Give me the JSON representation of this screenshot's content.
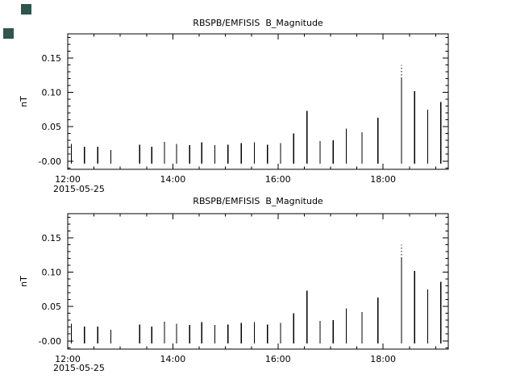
{
  "ui": {
    "background_color": "#ffffff",
    "plot_color": "#000000",
    "decoration_color": "#2e564c",
    "decorations": [
      "corner-square-top",
      "corner-square-left"
    ]
  },
  "chart_data": [
    {
      "type": "bar",
      "panel": "top",
      "title": "RBSPB/EMFISIS  B_Magnitude",
      "ylabel": "nT",
      "xlabel": "2015-05-25",
      "x_ticks": [
        "12:00",
        "14:00",
        "16:00",
        "18:00"
      ],
      "x_tick_hours": [
        12,
        14,
        16,
        18
      ],
      "xlim_hours": [
        12,
        19.24
      ],
      "ylim": [
        -0.012,
        0.185
      ],
      "y_ticks": [
        0.0,
        0.05,
        0.1,
        0.15
      ],
      "y_tick_labels": [
        "-0.00",
        "0.05",
        "0.10",
        "0.15"
      ],
      "grid": false,
      "legend": "none",
      "bar_color": "#000000",
      "points": [
        {
          "t": 12.07,
          "v": 0.025
        },
        {
          "t": 12.32,
          "v": 0.021
        },
        {
          "t": 12.57,
          "v": 0.021
        },
        {
          "t": 12.82,
          "v": 0.016
        },
        {
          "t": 13.37,
          "v": 0.024
        },
        {
          "t": 13.6,
          "v": 0.021
        },
        {
          "t": 13.84,
          "v": 0.028
        },
        {
          "t": 14.07,
          "v": 0.025
        },
        {
          "t": 14.32,
          "v": 0.023
        },
        {
          "t": 14.55,
          "v": 0.027
        },
        {
          "t": 14.8,
          "v": 0.023
        },
        {
          "t": 15.05,
          "v": 0.024
        },
        {
          "t": 15.3,
          "v": 0.026
        },
        {
          "t": 15.55,
          "v": 0.027
        },
        {
          "t": 15.8,
          "v": 0.024
        },
        {
          "t": 16.05,
          "v": 0.026
        },
        {
          "t": 16.3,
          "v": 0.04
        },
        {
          "t": 16.55,
          "v": 0.073
        },
        {
          "t": 16.8,
          "v": 0.029
        },
        {
          "t": 17.05,
          "v": 0.03
        },
        {
          "t": 17.3,
          "v": 0.047
        },
        {
          "t": 17.6,
          "v": 0.042
        },
        {
          "t": 17.9,
          "v": 0.063
        },
        {
          "t": 18.35,
          "v": 0.12,
          "v_dotted_top": 0.14
        },
        {
          "t": 18.6,
          "v": 0.102
        },
        {
          "t": 18.85,
          "v": 0.075
        },
        {
          "t": 19.1,
          "v": 0.086
        }
      ]
    },
    {
      "type": "bar",
      "panel": "bottom",
      "title": "RBSPB/EMFISIS  B_Magnitude",
      "ylabel": "nT",
      "xlabel": "2015-05-25",
      "x_ticks": [
        "12:00",
        "14:00",
        "16:00",
        "18:00"
      ],
      "x_tick_hours": [
        12,
        14,
        16,
        18
      ],
      "xlim_hours": [
        12,
        19.24
      ],
      "ylim": [
        -0.012,
        0.185
      ],
      "y_ticks": [
        0.0,
        0.05,
        0.1,
        0.15
      ],
      "y_tick_labels": [
        "-0.00",
        "0.05",
        "0.10",
        "0.15"
      ],
      "grid": false,
      "legend": "none",
      "bar_color": "#000000",
      "points": [
        {
          "t": 12.07,
          "v": 0.025
        },
        {
          "t": 12.32,
          "v": 0.021
        },
        {
          "t": 12.57,
          "v": 0.021
        },
        {
          "t": 12.82,
          "v": 0.016
        },
        {
          "t": 13.37,
          "v": 0.024
        },
        {
          "t": 13.6,
          "v": 0.021
        },
        {
          "t": 13.84,
          "v": 0.028
        },
        {
          "t": 14.07,
          "v": 0.025
        },
        {
          "t": 14.32,
          "v": 0.023
        },
        {
          "t": 14.55,
          "v": 0.027
        },
        {
          "t": 14.8,
          "v": 0.023
        },
        {
          "t": 15.05,
          "v": 0.024
        },
        {
          "t": 15.3,
          "v": 0.026
        },
        {
          "t": 15.55,
          "v": 0.027
        },
        {
          "t": 15.8,
          "v": 0.024
        },
        {
          "t": 16.05,
          "v": 0.026
        },
        {
          "t": 16.3,
          "v": 0.04
        },
        {
          "t": 16.55,
          "v": 0.073
        },
        {
          "t": 16.8,
          "v": 0.029
        },
        {
          "t": 17.05,
          "v": 0.03
        },
        {
          "t": 17.3,
          "v": 0.047
        },
        {
          "t": 17.6,
          "v": 0.042
        },
        {
          "t": 17.9,
          "v": 0.063
        },
        {
          "t": 18.35,
          "v": 0.12,
          "v_dotted_top": 0.14
        },
        {
          "t": 18.6,
          "v": 0.102
        },
        {
          "t": 18.85,
          "v": 0.075
        },
        {
          "t": 19.1,
          "v": 0.086
        }
      ]
    }
  ]
}
